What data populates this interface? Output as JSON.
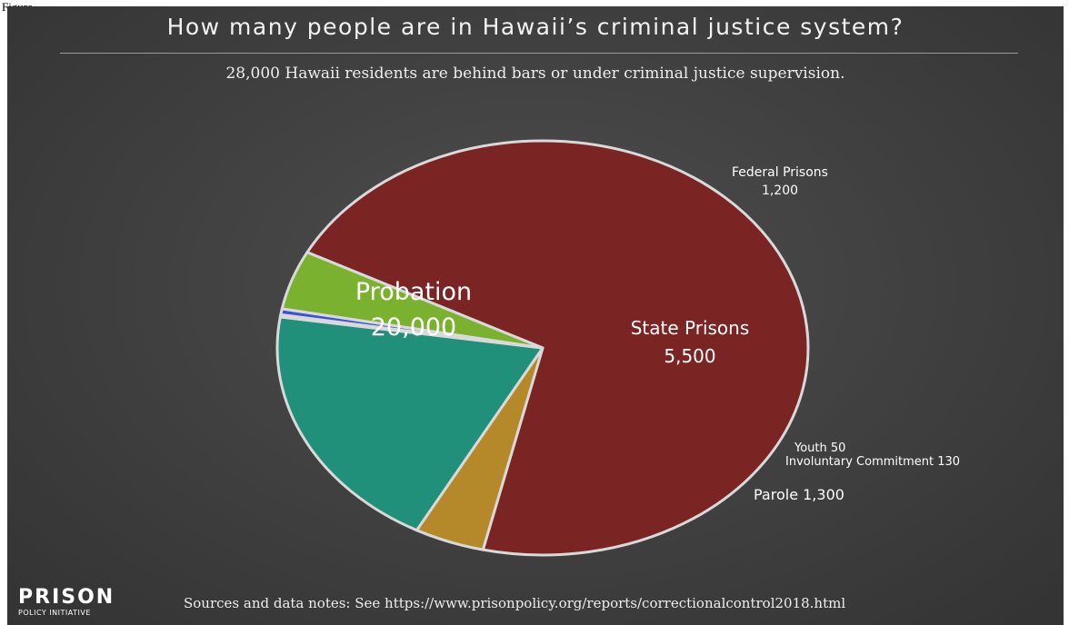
{
  "figure_label": "Figure",
  "title": "How many people are in Hawaii’s criminal justice system?",
  "subtitle": "28,000 Hawaii residents are behind bars or under criminal justice supervision.",
  "logo": {
    "main": "PRISON",
    "sub": "POLICY INITIATIVE"
  },
  "sources_note": "Sources and data notes: See https://www.prisonpolicy.org/reports/correctionalcontrol2018.html",
  "colors": {
    "background": "#444444",
    "slice_border": "#d9d9d9"
  },
  "chart_data": {
    "type": "pie",
    "title": "How many people are in Hawaii’s criminal justice system?",
    "total": 28000,
    "slices": [
      {
        "name": "Probation",
        "value_label": "20,000",
        "value": 20000,
        "color": "#7b2424"
      },
      {
        "name": "Federal Prisons",
        "value_label": "1,200",
        "value": 1200,
        "color": "#b5882a"
      },
      {
        "name": "State Prisons",
        "value_label": "5,500",
        "value": 5500,
        "color": "#21907a"
      },
      {
        "name": "Youth",
        "value_label": "50",
        "value": 50,
        "color": "#8fa0ea"
      },
      {
        "name": "Involuntary Commitment",
        "value_label": "130",
        "value": 130,
        "color": "#3b53d6"
      },
      {
        "name": "Parole",
        "value_label": "1,300",
        "value": 1300,
        "color": "#7ab22f"
      }
    ]
  },
  "labels": {
    "probation": {
      "name": "Probation",
      "value": "20,000"
    },
    "federal": {
      "name": "Federal Prisons",
      "value": "1,200"
    },
    "state": {
      "name": "State Prisons",
      "value": "5,500"
    },
    "youth": "Youth 50",
    "involuntary": "Involuntary Commitment 130",
    "parole": "Parole 1,300"
  }
}
